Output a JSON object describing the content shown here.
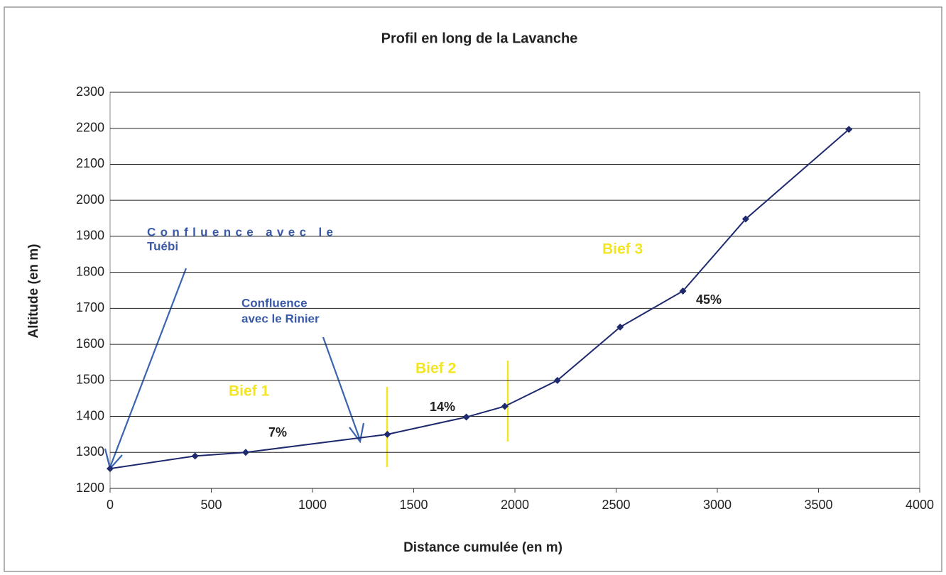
{
  "chart_data": {
    "type": "line",
    "title": "Profil en long de la Lavanche",
    "x_label": "Distance cumulée (en m)",
    "y_label": "Altitude (en m)",
    "x": [
      0,
      420,
      670,
      1370,
      1760,
      1950,
      2210,
      2520,
      2830,
      3140,
      3650
    ],
    "series": [
      {
        "name": "Altitude",
        "color": "#1f2a6e",
        "values": [
          1255,
          1290,
          1300,
          1350,
          1398,
          1428,
          1500,
          1648,
          1748,
          1948,
          2197
        ]
      }
    ],
    "xlim": [
      0,
      4000
    ],
    "xticks": [
      0,
      500,
      1000,
      1500,
      2000,
      2500,
      3000,
      3500,
      4000
    ],
    "ylim": [
      1200,
      2300
    ],
    "yticks": [
      1200,
      1300,
      1400,
      1500,
      1600,
      1700,
      1800,
      1900,
      2000,
      2100,
      2200,
      2300
    ],
    "grid": true,
    "annotations": [
      {
        "lines": [
          "Confluence avec le",
          "Tuébi"
        ]
      },
      {
        "lines": [
          "Confluence",
          "avec le Rinier"
        ]
      },
      {
        "lines": [
          "Bief 1"
        ]
      },
      {
        "lines": [
          "Bief 2"
        ]
      },
      {
        "lines": [
          "Bief 3"
        ]
      },
      {
        "lines": [
          "7%"
        ]
      },
      {
        "lines": [
          "14%"
        ]
      },
      {
        "lines": [
          "45%"
        ]
      }
    ]
  }
}
